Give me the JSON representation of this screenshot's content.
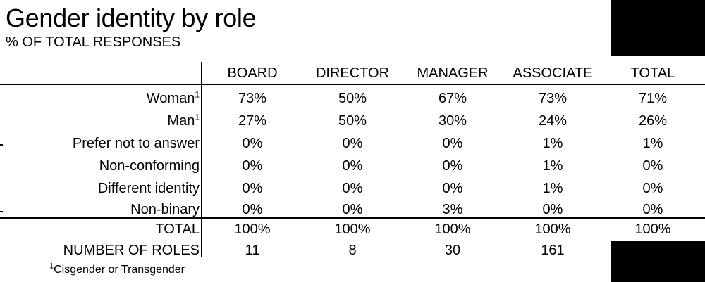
{
  "chart_data": {
    "type": "table",
    "title": "Gender identity by role",
    "subtitle": "% OF TOTAL RESPONSES",
    "columns": [
      "BOARD",
      "DIRECTOR",
      "MANAGER",
      "ASSOCIATE",
      "TOTAL"
    ],
    "rows": [
      {
        "label": "Woman",
        "marker": "1",
        "values": [
          "73%",
          "50%",
          "67%",
          "73%",
          "71%"
        ]
      },
      {
        "label": "Man",
        "marker": "1",
        "values": [
          "27%",
          "50%",
          "30%",
          "24%",
          "26%"
        ]
      },
      {
        "label": "Prefer not to answer",
        "marker": "",
        "values": [
          "0%",
          "0%",
          "0%",
          "1%",
          "1%"
        ]
      },
      {
        "label": "Non-conforming",
        "marker": "",
        "values": [
          "0%",
          "0%",
          "0%",
          "1%",
          "0%"
        ]
      },
      {
        "label": "Different identity",
        "marker": "",
        "values": [
          "0%",
          "0%",
          "0%",
          "1%",
          "0%"
        ]
      },
      {
        "label": "Non-binary",
        "marker": "",
        "values": [
          "0%",
          "0%",
          "3%",
          "0%",
          "0%"
        ]
      }
    ],
    "total_row": {
      "label": "TOTAL",
      "values": [
        "100%",
        "100%",
        "100%",
        "100%",
        "100%"
      ]
    },
    "count_row": {
      "label": "NUMBER OF ROLES",
      "values": [
        "11",
        "8",
        "30",
        "161",
        ""
      ]
    },
    "footnote": {
      "marker": "1",
      "text": "Cisgender or Transgender"
    }
  }
}
